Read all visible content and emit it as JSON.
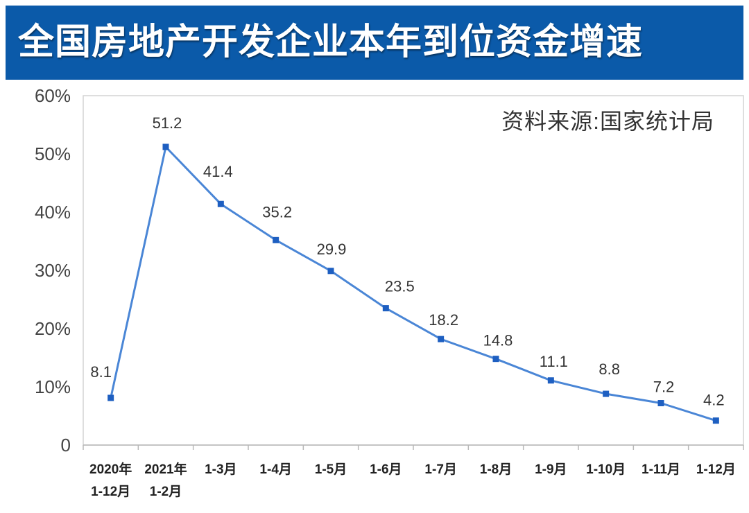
{
  "chart_data": {
    "type": "line",
    "title": "全国房地产开发企业本年到位资金增速",
    "source": "资料来源:国家统计局",
    "categories": [
      "2020年\n1-12月",
      "2021年\n1-2月",
      "1-3月",
      "1-4月",
      "1-5月",
      "1-6月",
      "1-7月",
      "1-8月",
      "1-9月",
      "1-10月",
      "1-11月",
      "1-12月"
    ],
    "values": [
      8.1,
      51.2,
      41.4,
      35.2,
      29.9,
      23.5,
      18.2,
      14.8,
      11.1,
      8.8,
      7.2,
      4.2
    ],
    "ylim": [
      0,
      60
    ],
    "yticks": [
      0,
      10,
      20,
      30,
      40,
      50,
      60
    ],
    "ytick_labels": [
      "0",
      "10%",
      "20%",
      "30%",
      "40%",
      "50%",
      "60%"
    ],
    "data_labels": true,
    "grid": false,
    "legend": false
  },
  "colors": {
    "banner": "#0b5aa9",
    "title_text": "#ffffff",
    "line": "#4a86d6",
    "marker": "#1e5fc1",
    "frame": "#d4d4d4",
    "axis": "#b8b8b8"
  }
}
